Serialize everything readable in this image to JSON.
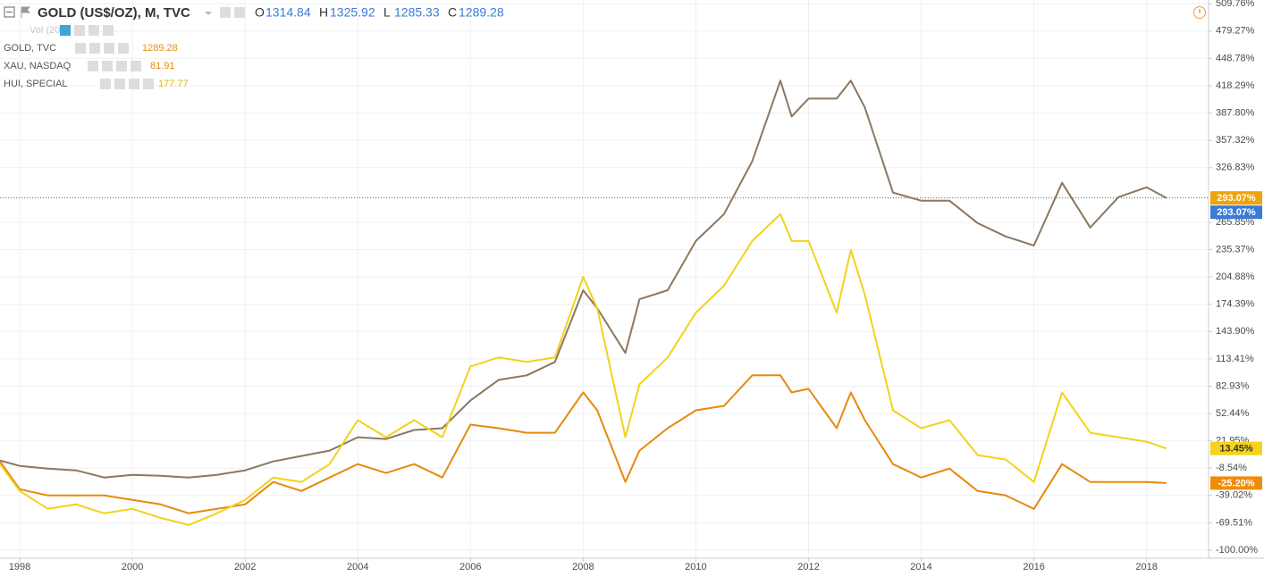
{
  "chart_data": {
    "type": "line",
    "symbol": "GOLD (US$/OZ), M, TVC",
    "ohlc": [
      {
        "label": "O",
        "value": 1314.84
      },
      {
        "label": "H",
        "value": 1325.92
      },
      {
        "label": "L",
        "value": 1285.33
      },
      {
        "label": "C",
        "value": 1289.28
      }
    ],
    "volume_label": "Vol (20)",
    "x": [
      1997.65,
      1998.0,
      1998.5,
      1999.0,
      1999.5,
      2000.0,
      2000.5,
      2001.0,
      2001.5,
      2002.0,
      2002.5,
      2003.0,
      2003.5,
      2004.0,
      2004.5,
      2005.0,
      2005.5,
      2006.0,
      2006.5,
      2007.0,
      2007.5,
      2008.0,
      2008.25,
      2008.75,
      2009.0,
      2009.5,
      2010.0,
      2010.5,
      2011.0,
      2011.5,
      2011.7,
      2012.0,
      2012.5,
      2012.75,
      2013.0,
      2013.5,
      2014.0,
      2014.5,
      2015.0,
      2015.5,
      2016.0,
      2016.5,
      2017.0,
      2017.5,
      2018.0,
      2018.35
    ],
    "series": [
      {
        "name": "GOLD, TVC",
        "last": 1289.28,
        "color": "#8c7760",
        "value_color": "#e8900c",
        "values": [
          0,
          -6,
          -9,
          -11,
          -19,
          -16,
          -17,
          -19,
          -16,
          -11,
          -1,
          5,
          11,
          26,
          24,
          34,
          36,
          67,
          90,
          95,
          110,
          190,
          170,
          120,
          180,
          190,
          245,
          275,
          334,
          424,
          384,
          404,
          404,
          424,
          394,
          299,
          290,
          290,
          265,
          250,
          240,
          310,
          260,
          294,
          305,
          293.07
        ]
      },
      {
        "name": "XAU, NASDAQ",
        "last": 81.91,
        "color": "#e8880f",
        "value_color": "#e8880f",
        "values": [
          -1,
          -32,
          -39,
          -39,
          -39,
          -44,
          -49,
          -59,
          -54,
          -49,
          -24,
          -34,
          -19,
          -4,
          -14,
          -4,
          -19,
          40,
          36,
          31,
          31,
          76,
          56,
          -24,
          11,
          36,
          56,
          61,
          95,
          95,
          76,
          80,
          36,
          76,
          45,
          -4,
          -19,
          -9,
          -34,
          -39,
          -54,
          -4,
          -24,
          -24,
          -24,
          -25.2
        ]
      },
      {
        "name": "HUI, SPECIAL",
        "last": 177.77,
        "color": "#f2d21c",
        "value_color": "#e5b800",
        "values": [
          -4,
          -34,
          -54,
          -49,
          -59,
          -54,
          -64,
          -72,
          -59,
          -44,
          -19,
          -24,
          -4,
          45,
          26,
          45,
          26,
          105,
          115,
          110,
          115,
          205,
          170,
          26,
          85,
          115,
          165,
          195,
          245,
          275,
          245,
          245,
          165,
          235,
          185,
          56,
          36,
          45,
          6,
          1,
          -24,
          76,
          31,
          26,
          21,
          13.45
        ]
      }
    ],
    "price_labels": [
      {
        "value": 293.07,
        "label": "293.07%",
        "color": "#f0a30a",
        "text_color": "#ffffff",
        "line": true
      },
      {
        "value": 293.07,
        "label": "293.07%",
        "color": "#3a7bd5",
        "text_color": "#ffffff",
        "line": false
      },
      {
        "value": 13.45,
        "label": "13.45%",
        "color": "#f5d31a",
        "text_color": "#333333",
        "line": false
      },
      {
        "value": -25.2,
        "label": "-25.20%",
        "color": "#f08c0a",
        "text_color": "#ffffff",
        "line": false
      }
    ],
    "xlim": [
      1997.65,
      2019.1
    ],
    "xticks": [
      1998,
      2000,
      2002,
      2004,
      2006,
      2008,
      2010,
      2012,
      2014,
      2016,
      2018
    ],
    "ylim": [
      -109,
      514
    ],
    "yticks": [
      {
        "value": 509.76,
        "label": "509.76%"
      },
      {
        "value": 479.27,
        "label": "479.27%"
      },
      {
        "value": 448.78,
        "label": "448.78%"
      },
      {
        "value": 418.29,
        "label": "418.29%"
      },
      {
        "value": 387.8,
        "label": "387.80%"
      },
      {
        "value": 357.32,
        "label": "357.32%"
      },
      {
        "value": 326.83,
        "label": "326.83%"
      },
      {
        "value": 265.85,
        "label": "265.85%"
      },
      {
        "value": 235.37,
        "label": "235.37%"
      },
      {
        "value": 204.88,
        "label": "204.88%"
      },
      {
        "value": 174.39,
        "label": "174.39%"
      },
      {
        "value": 143.9,
        "label": "143.90%"
      },
      {
        "value": 113.41,
        "label": "113.41%"
      },
      {
        "value": 82.93,
        "label": "82.93%"
      },
      {
        "value": 52.44,
        "label": "52.44%"
      },
      {
        "value": 21.95,
        "label": "21.95%"
      },
      {
        "value": -8.54,
        "label": "-8.54%"
      },
      {
        "value": -39.02,
        "label": "-39.02%"
      },
      {
        "value": -69.51,
        "label": "-69.51%"
      },
      {
        "value": -100,
        "label": "-100.00%"
      }
    ],
    "grid": true
  }
}
